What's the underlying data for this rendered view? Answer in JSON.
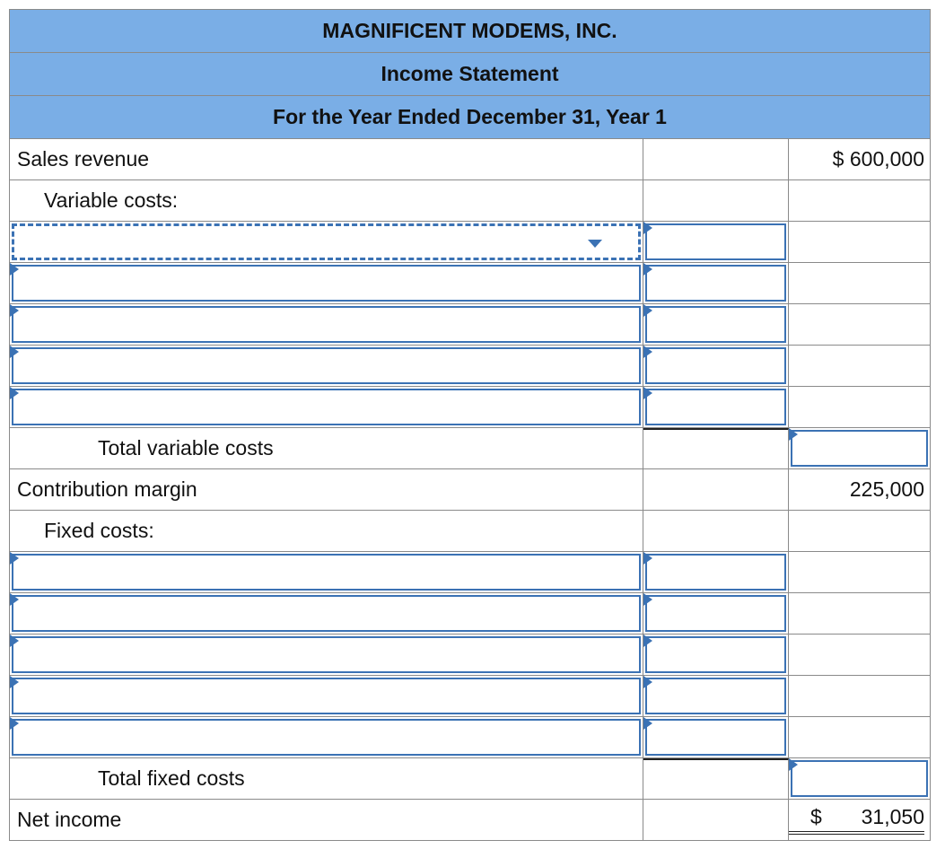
{
  "header": {
    "company": "MAGNIFICENT MODEMS, INC.",
    "statement": "Income Statement",
    "period": "For the Year Ended December 31, Year 1"
  },
  "rows": {
    "sales_revenue": {
      "label": "Sales revenue",
      "currency": "$",
      "amount": "600,000"
    },
    "variable_costs_heading": "Variable costs:",
    "total_variable_costs": "Total variable costs",
    "contribution_margin": {
      "label": "Contribution margin",
      "amount": "225,000"
    },
    "fixed_costs_heading": "Fixed costs:",
    "total_fixed_costs": "Total fixed costs",
    "net_income": {
      "label": "Net income",
      "currency": "$",
      "amount": "31,050"
    }
  },
  "colors": {
    "header_bg": "#7aaee6",
    "input_border": "#3b72b4",
    "grid": "#8a8a8a"
  }
}
